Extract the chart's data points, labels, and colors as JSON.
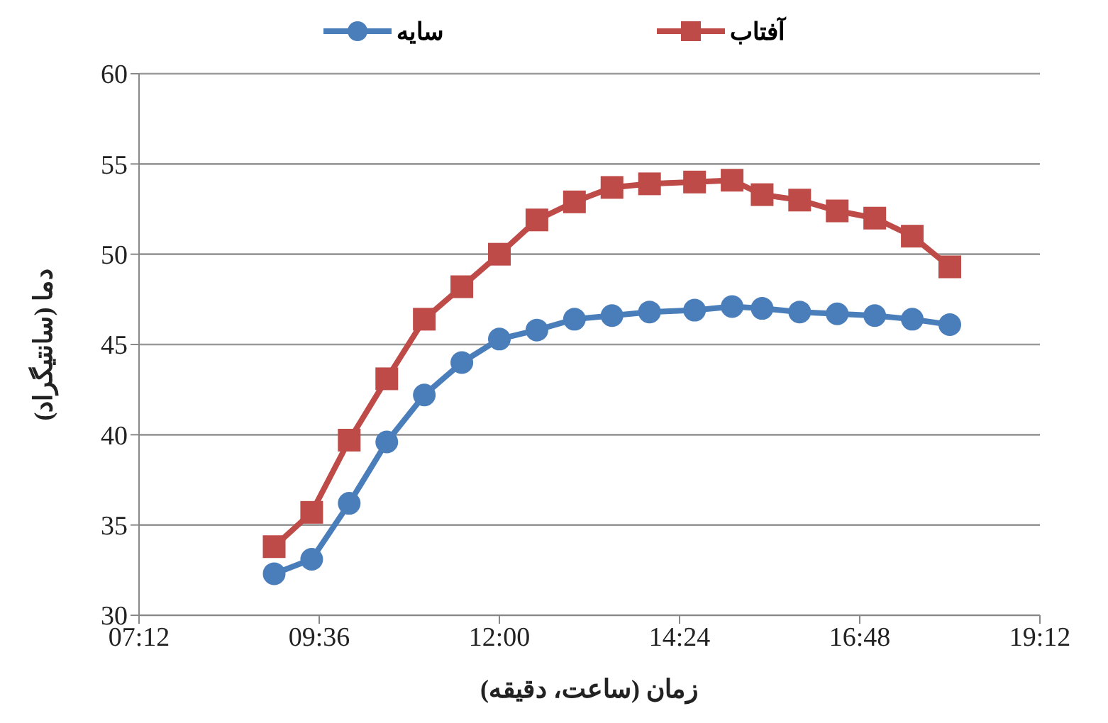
{
  "chart_data": {
    "type": "line",
    "xlabel": "زمان (ساعت، دقیقه)",
    "ylabel": "دما (سانتیگراد)",
    "x": [
      9,
      9.5,
      10,
      10.5,
      11,
      11.5,
      12,
      12.5,
      13,
      13.5,
      14,
      14.6,
      15.1,
      15.5,
      16,
      16.5,
      17,
      17.5,
      18
    ],
    "series": [
      {
        "name": "سایه",
        "color": "#4a7ebb",
        "marker": "circle",
        "values": [
          32.3,
          33.1,
          36.2,
          39.6,
          42.2,
          44.0,
          45.3,
          45.8,
          46.4,
          46.6,
          46.8,
          46.9,
          47.1,
          47.0,
          46.8,
          46.7,
          46.6,
          46.4,
          46.1
        ]
      },
      {
        "name": "آفتاب",
        "color": "#be4b48",
        "marker": "square",
        "values": [
          33.8,
          35.7,
          39.7,
          43.1,
          46.4,
          48.2,
          50.0,
          51.9,
          52.9,
          53.7,
          53.9,
          54.0,
          54.1,
          53.3,
          53.0,
          52.4,
          52.0,
          51.0,
          49.3
        ]
      }
    ],
    "xlim": [
      7.2,
      19.2
    ],
    "xticks": [
      {
        "value": 7.2,
        "label": "07:12"
      },
      {
        "value": 9.6,
        "label": "09:36"
      },
      {
        "value": 12,
        "label": "12:00"
      },
      {
        "value": 14.4,
        "label": "14:24"
      },
      {
        "value": 16.8,
        "label": "16:48"
      },
      {
        "value": 19.2,
        "label": "19:12"
      }
    ],
    "ylim": [
      30,
      60
    ],
    "yticks": [
      30,
      35,
      40,
      45,
      50,
      55,
      60
    ],
    "grid": "y",
    "legend": "top"
  }
}
